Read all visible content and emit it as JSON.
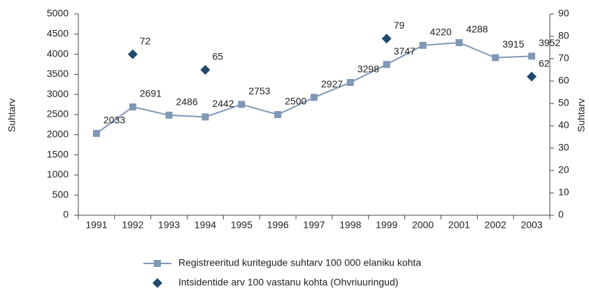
{
  "chart_data": {
    "type": "line",
    "categories": [
      "1991",
      "1992",
      "1993",
      "1994",
      "1995",
      "1996",
      "1997",
      "1998",
      "1999",
      "2000",
      "2001",
      "2002",
      "2003"
    ],
    "series": [
      {
        "name": "Registreeritud kuritegude suhtarv 100 000 elaniku kohta",
        "color": "#7f98b6",
        "marker": "square",
        "type": "line",
        "values": [
          2033,
          2691,
          2486,
          2442,
          2753,
          2500,
          2927,
          3298,
          3747,
          4220,
          4288,
          3915,
          3952
        ]
      },
      {
        "name": "Intsidentide arv 100 vastanu kohta (Ohvriuuringud)",
        "color": "#1f4a6b",
        "marker": "diamond",
        "type": "scatter",
        "axis": "y2",
        "values": [
          null,
          72,
          null,
          65,
          null,
          null,
          null,
          null,
          79,
          null,
          null,
          null,
          62
        ]
      }
    ],
    "ylabel": "Suhtarv",
    "y2label": "Suhtarv",
    "ylim": [
      0,
      5000
    ],
    "yticks": [
      0,
      500,
      1000,
      1500,
      2000,
      2500,
      3000,
      3500,
      4000,
      4500,
      5000
    ],
    "y2lim": [
      0,
      90
    ],
    "y2ticks": [
      0,
      10,
      20,
      30,
      40,
      50,
      60,
      70,
      80,
      90
    ],
    "legend": "bottom"
  }
}
